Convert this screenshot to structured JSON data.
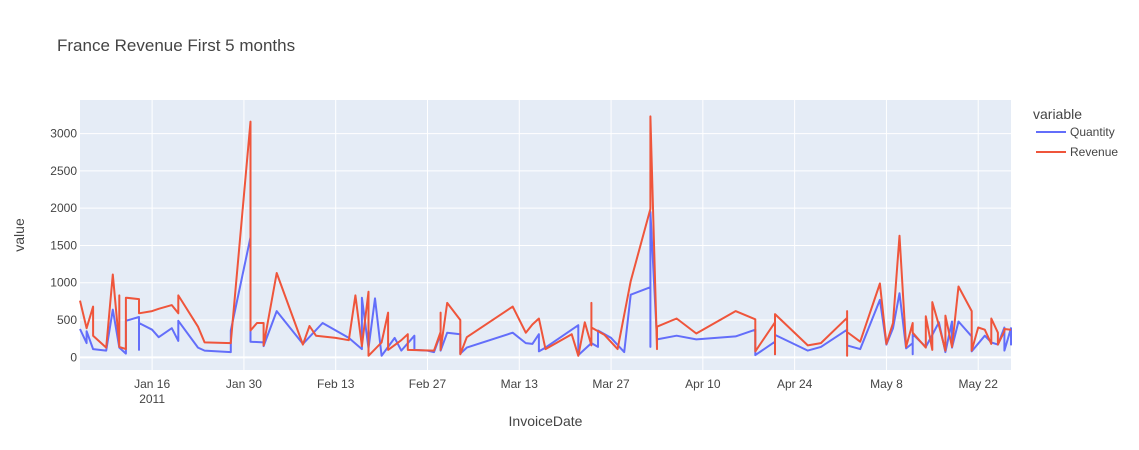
{
  "chart_data": {
    "type": "line",
    "title": "France Revenue First 5 months",
    "xlabel": "InvoiceDate",
    "ylabel": "value",
    "legend_title": "variable",
    "legend_position": "right",
    "grid": true,
    "ylim": [
      -170,
      3450
    ],
    "xlim": [
      "2011-01-05",
      "2011-05-27"
    ],
    "x_ticks": [
      {
        "date": "2011-01-16",
        "label": "Jan 16",
        "sublabel": "2011"
      },
      {
        "date": "2011-01-30",
        "label": "Jan 30"
      },
      {
        "date": "2011-02-13",
        "label": "Feb 13"
      },
      {
        "date": "2011-02-27",
        "label": "Feb 27"
      },
      {
        "date": "2011-03-13",
        "label": "Mar 13"
      },
      {
        "date": "2011-03-27",
        "label": "Mar 27"
      },
      {
        "date": "2011-04-10",
        "label": "Apr 10"
      },
      {
        "date": "2011-04-24",
        "label": "Apr 24"
      },
      {
        "date": "2011-05-08",
        "label": "May 8"
      },
      {
        "date": "2011-05-22",
        "label": "May 22"
      }
    ],
    "y_ticks": [
      0,
      500,
      1000,
      1500,
      2000,
      2500,
      3000
    ],
    "series": [
      {
        "name": "Quantity",
        "color": "#636efa",
        "points": [
          [
            "2011-01-05",
            380
          ],
          [
            "2011-01-06",
            190
          ],
          [
            "2011-01-06",
            350
          ],
          [
            "2011-01-07",
            110
          ],
          [
            "2011-01-09",
            90
          ],
          [
            "2011-01-10",
            640
          ],
          [
            "2011-01-11",
            130
          ],
          [
            "2011-01-12",
            50
          ],
          [
            "2011-01-12",
            490
          ],
          [
            "2011-01-14",
            540
          ],
          [
            "2011-01-14",
            100
          ],
          [
            "2011-01-14",
            460
          ],
          [
            "2011-01-16",
            370
          ],
          [
            "2011-01-17",
            270
          ],
          [
            "2011-01-19",
            390
          ],
          [
            "2011-01-20",
            220
          ],
          [
            "2011-01-20",
            490
          ],
          [
            "2011-01-23",
            130
          ],
          [
            "2011-01-24",
            90
          ],
          [
            "2011-01-28",
            70
          ],
          [
            "2011-01-28",
            360
          ],
          [
            "2011-01-31",
            1610
          ],
          [
            "2011-01-31",
            210
          ],
          [
            "2011-02-02",
            200
          ],
          [
            "2011-02-02",
            150
          ],
          [
            "2011-02-04",
            620
          ],
          [
            "2011-02-08",
            180
          ],
          [
            "2011-02-11",
            460
          ],
          [
            "2011-02-15",
            260
          ],
          [
            "2011-02-17",
            110
          ],
          [
            "2011-02-17",
            800
          ],
          [
            "2011-02-18",
            120
          ],
          [
            "2011-02-19",
            790
          ],
          [
            "2011-02-20",
            20
          ],
          [
            "2011-02-22",
            260
          ],
          [
            "2011-02-23",
            90
          ],
          [
            "2011-02-25",
            290
          ],
          [
            "2011-02-25",
            100
          ],
          [
            "2011-02-27",
            90
          ],
          [
            "2011-02-28",
            70
          ],
          [
            "2011-03-01",
            310
          ],
          [
            "2011-03-01",
            90
          ],
          [
            "2011-03-02",
            330
          ],
          [
            "2011-03-04",
            310
          ],
          [
            "2011-03-04",
            50
          ],
          [
            "2011-03-05",
            130
          ],
          [
            "2011-03-12",
            330
          ],
          [
            "2011-03-14",
            190
          ],
          [
            "2011-03-15",
            180
          ],
          [
            "2011-03-16",
            310
          ],
          [
            "2011-03-16",
            80
          ],
          [
            "2011-03-17",
            130
          ],
          [
            "2011-03-22",
            430
          ],
          [
            "2011-03-22",
            30
          ],
          [
            "2011-03-24",
            190
          ],
          [
            "2011-03-25",
            140
          ],
          [
            "2011-03-25",
            360
          ],
          [
            "2011-03-27",
            260
          ],
          [
            "2011-03-29",
            70
          ],
          [
            "2011-03-30",
            840
          ],
          [
            "2011-04-02",
            940
          ],
          [
            "2011-04-02",
            140
          ],
          [
            "2011-04-02",
            1950
          ],
          [
            "2011-04-03",
            240
          ],
          [
            "2011-04-06",
            290
          ],
          [
            "2011-04-09",
            240
          ],
          [
            "2011-04-15",
            280
          ],
          [
            "2011-04-18",
            370
          ],
          [
            "2011-04-18",
            30
          ],
          [
            "2011-04-21",
            210
          ],
          [
            "2011-04-21",
            40
          ],
          [
            "2011-04-21",
            300
          ],
          [
            "2011-04-26",
            90
          ],
          [
            "2011-04-28",
            140
          ],
          [
            "2011-05-02",
            370
          ],
          [
            "2011-05-02",
            160
          ],
          [
            "2011-05-04",
            110
          ],
          [
            "2011-05-07",
            770
          ],
          [
            "2011-05-08",
            170
          ],
          [
            "2011-05-09",
            390
          ],
          [
            "2011-05-10",
            860
          ],
          [
            "2011-05-11",
            120
          ],
          [
            "2011-05-12",
            190
          ],
          [
            "2011-05-12",
            40
          ],
          [
            "2011-05-12",
            310
          ],
          [
            "2011-05-14",
            140
          ],
          [
            "2011-05-15",
            300
          ],
          [
            "2011-05-16",
            470
          ],
          [
            "2011-05-17",
            70
          ],
          [
            "2011-05-18",
            480
          ],
          [
            "2011-05-18",
            130
          ],
          [
            "2011-05-19",
            480
          ],
          [
            "2011-05-21",
            280
          ],
          [
            "2011-05-21",
            80
          ],
          [
            "2011-05-23",
            290
          ],
          [
            "2011-05-24",
            200
          ],
          [
            "2011-05-25",
            170
          ],
          [
            "2011-05-26",
            400
          ],
          [
            "2011-05-26",
            90
          ],
          [
            "2011-05-27",
            390
          ],
          [
            "2011-05-27",
            160
          ]
        ]
      },
      {
        "name": "Revenue",
        "color": "#ef553b",
        "points": [
          [
            "2011-01-05",
            760
          ],
          [
            "2011-01-06",
            390
          ],
          [
            "2011-01-07",
            680
          ],
          [
            "2011-01-07",
            290
          ],
          [
            "2011-01-09",
            130
          ],
          [
            "2011-01-10",
            1110
          ],
          [
            "2011-01-11",
            160
          ],
          [
            "2011-01-11",
            830
          ],
          [
            "2011-01-11",
            140
          ],
          [
            "2011-01-12",
            110
          ],
          [
            "2011-01-12",
            800
          ],
          [
            "2011-01-14",
            780
          ],
          [
            "2011-01-14",
            590
          ],
          [
            "2011-01-16",
            620
          ],
          [
            "2011-01-17",
            650
          ],
          [
            "2011-01-19",
            700
          ],
          [
            "2011-01-20",
            590
          ],
          [
            "2011-01-20",
            830
          ],
          [
            "2011-01-23",
            410
          ],
          [
            "2011-01-24",
            200
          ],
          [
            "2011-01-28",
            190
          ],
          [
            "2011-01-28",
            200
          ],
          [
            "2011-01-31",
            3160
          ],
          [
            "2011-01-31",
            360
          ],
          [
            "2011-02-01",
            460
          ],
          [
            "2011-02-02",
            460
          ],
          [
            "2011-02-02",
            160
          ],
          [
            "2011-02-04",
            1130
          ],
          [
            "2011-02-08",
            170
          ],
          [
            "2011-02-09",
            420
          ],
          [
            "2011-02-10",
            290
          ],
          [
            "2011-02-13",
            260
          ],
          [
            "2011-02-15",
            230
          ],
          [
            "2011-02-16",
            830
          ],
          [
            "2011-02-17",
            150
          ],
          [
            "2011-02-18",
            880
          ],
          [
            "2011-02-18",
            20
          ],
          [
            "2011-02-20",
            200
          ],
          [
            "2011-02-21",
            600
          ],
          [
            "2011-02-21",
            100
          ],
          [
            "2011-02-23",
            230
          ],
          [
            "2011-02-24",
            310
          ],
          [
            "2011-02-24",
            100
          ],
          [
            "2011-02-28",
            90
          ],
          [
            "2011-02-28",
            90
          ],
          [
            "2011-03-01",
            340
          ],
          [
            "2011-03-01",
            600
          ],
          [
            "2011-03-01",
            100
          ],
          [
            "2011-03-02",
            730
          ],
          [
            "2011-03-04",
            500
          ],
          [
            "2011-03-04",
            40
          ],
          [
            "2011-03-05",
            270
          ],
          [
            "2011-03-12",
            680
          ],
          [
            "2011-03-14",
            330
          ],
          [
            "2011-03-15",
            440
          ],
          [
            "2011-03-16",
            520
          ],
          [
            "2011-03-17",
            110
          ],
          [
            "2011-03-21",
            310
          ],
          [
            "2011-03-22",
            20
          ],
          [
            "2011-03-23",
            470
          ],
          [
            "2011-03-24",
            160
          ],
          [
            "2011-03-24",
            730
          ],
          [
            "2011-03-24",
            400
          ],
          [
            "2011-03-26",
            300
          ],
          [
            "2011-03-28",
            110
          ],
          [
            "2011-03-30",
            1020
          ],
          [
            "2011-04-02",
            1990
          ],
          [
            "2011-04-02",
            3230
          ],
          [
            "2011-04-03",
            110
          ],
          [
            "2011-04-03",
            410
          ],
          [
            "2011-04-06",
            520
          ],
          [
            "2011-04-09",
            320
          ],
          [
            "2011-04-15",
            620
          ],
          [
            "2011-04-18",
            510
          ],
          [
            "2011-04-18",
            80
          ],
          [
            "2011-04-21",
            470
          ],
          [
            "2011-04-21",
            40
          ],
          [
            "2011-04-21",
            580
          ],
          [
            "2011-04-26",
            160
          ],
          [
            "2011-04-28",
            190
          ],
          [
            "2011-05-02",
            530
          ],
          [
            "2011-05-02",
            620
          ],
          [
            "2011-05-02",
            20
          ],
          [
            "2011-05-02",
            340
          ],
          [
            "2011-05-04",
            210
          ],
          [
            "2011-05-07",
            990
          ],
          [
            "2011-05-08",
            180
          ],
          [
            "2011-05-09",
            460
          ],
          [
            "2011-05-10",
            1630
          ],
          [
            "2011-05-11",
            140
          ],
          [
            "2011-05-12",
            460
          ],
          [
            "2011-05-12",
            330
          ],
          [
            "2011-05-14",
            130
          ],
          [
            "2011-05-14",
            550
          ],
          [
            "2011-05-15",
            100
          ],
          [
            "2011-05-15",
            740
          ],
          [
            "2011-05-16",
            430
          ],
          [
            "2011-05-17",
            90
          ],
          [
            "2011-05-17",
            560
          ],
          [
            "2011-05-18",
            140
          ],
          [
            "2011-05-19",
            950
          ],
          [
            "2011-05-21",
            620
          ],
          [
            "2011-05-21",
            90
          ],
          [
            "2011-05-22",
            400
          ],
          [
            "2011-05-23",
            370
          ],
          [
            "2011-05-24",
            180
          ],
          [
            "2011-05-24",
            520
          ],
          [
            "2011-05-25",
            330
          ],
          [
            "2011-05-25",
            170
          ],
          [
            "2011-05-26",
            350
          ],
          [
            "2011-05-26",
            380
          ],
          [
            "2011-05-27",
            370
          ]
        ]
      }
    ]
  }
}
